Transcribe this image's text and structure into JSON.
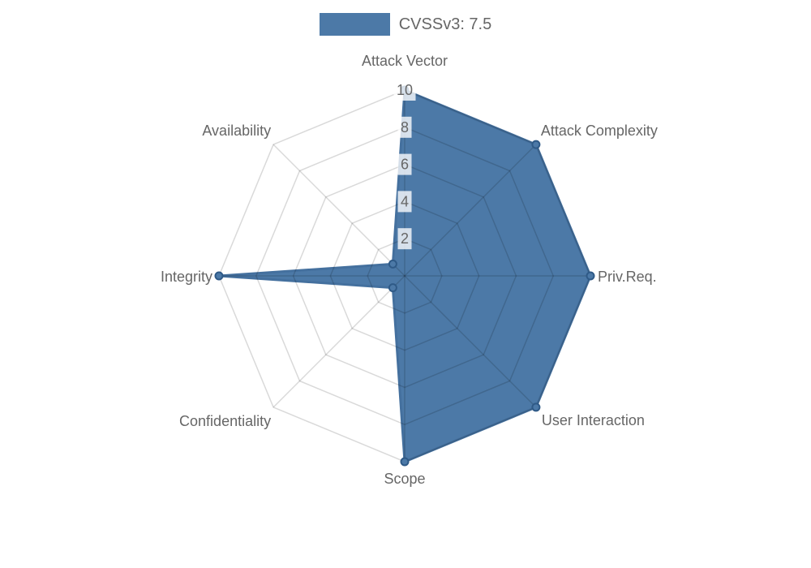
{
  "page": {
    "background": "#ffffff"
  },
  "legend": {
    "label": "CVSSv3: 7.5",
    "swatch_color": "#4c79a7"
  },
  "chart_data": {
    "type": "radar",
    "title": "",
    "categories": [
      "Attack Vector",
      "Attack Complexity",
      "Priv.Req.",
      "User Interaction",
      "Scope",
      "Confidentiality",
      "Integrity",
      "Availability"
    ],
    "series": [
      {
        "name": "CVSSv3: 7.5",
        "values": [
          10,
          10,
          10,
          10,
          10,
          0.9,
          10,
          0.9
        ]
      }
    ],
    "rlim": [
      0,
      10
    ],
    "tick_values": [
      2,
      4,
      6,
      8,
      10
    ],
    "tick_labels": [
      "2",
      "4",
      "6",
      "8",
      "10"
    ],
    "grid": true,
    "legend_position": "top",
    "colors": {
      "fill": "#4c79a7",
      "border": "#44709e",
      "point_fill": "#4c79a7",
      "point_border": "#2f5a87",
      "grid_line": "rgba(0,0,0,0.15)",
      "tick_backdrop": "rgba(255,255,255,0.78)",
      "text": "#666666"
    }
  }
}
